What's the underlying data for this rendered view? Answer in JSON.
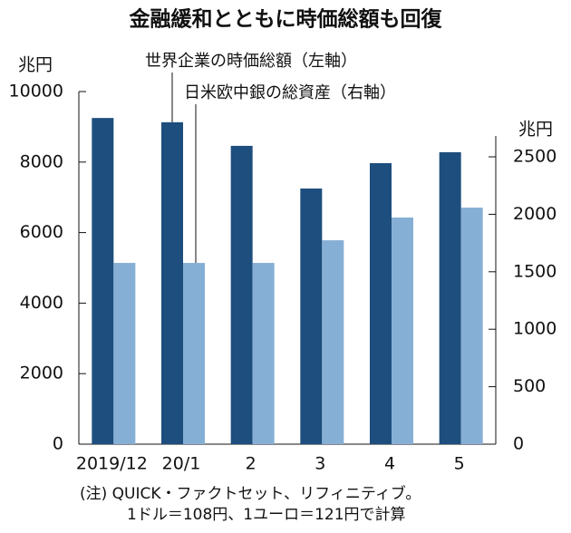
{
  "chart_data": {
    "type": "bar",
    "title": "金融緩和とともに時価総額も回復",
    "y_unit": "兆円",
    "y2_unit": "兆円",
    "categories": [
      "2019/12",
      "20/1",
      "2",
      "3",
      "4",
      "5"
    ],
    "series": [
      {
        "name": "世界企業の時価総額（左軸）",
        "color": "#1d4e7d",
        "values": [
          9250,
          9130,
          8460,
          7250,
          7970,
          8280
        ]
      },
      {
        "name": "日米欧中銀の総資産（右軸）",
        "color": "#86afd6",
        "axis": "y2",
        "values": [
          1577,
          1577,
          1577,
          1774,
          1972,
          2058
        ]
      }
    ],
    "ylim": [
      0,
      10000
    ],
    "yticks": [
      0,
      2000,
      4000,
      6000,
      8000,
      10000
    ],
    "y2lim": [
      0,
      3068
    ],
    "y2ticks": [
      0,
      500,
      1000,
      1500,
      2000,
      2500
    ],
    "notes": [
      "(注) QUICK・ファクトセット、リフィニティブ。",
      "1ドル＝108円、1ユーロ＝121円で計算"
    ]
  }
}
